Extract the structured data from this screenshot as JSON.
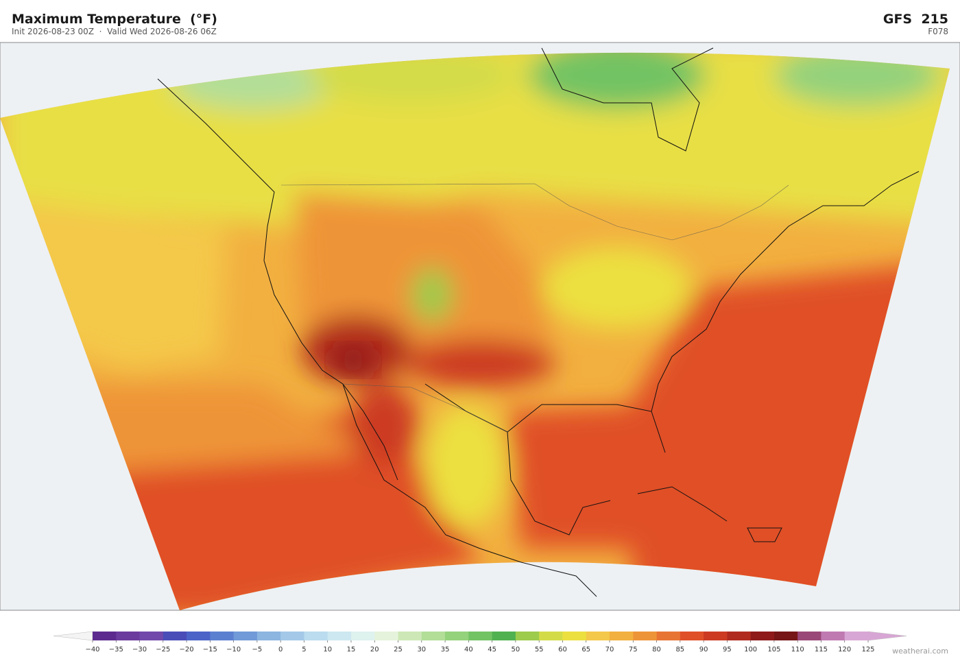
{
  "header": {
    "title": "Maximum Temperature  (°F)",
    "subtitle": "Init 2026-08-23 00Z  ·  Valid Wed 2026-08-26 06Z",
    "model": "GFS  215",
    "forecast_hour": "F078"
  },
  "colorbar": {
    "ticks": [
      {
        "value": -40,
        "label": "−40"
      },
      {
        "value": -35,
        "label": "−35"
      },
      {
        "value": -30,
        "label": "−30"
      },
      {
        "value": -25,
        "label": "−25"
      },
      {
        "value": -20,
        "label": "−20"
      },
      {
        "value": -15,
        "label": "−15"
      },
      {
        "value": -10,
        "label": "−10"
      },
      {
        "value": -5,
        "label": "−5"
      },
      0,
      5,
      10,
      15,
      20,
      25,
      30,
      35,
      40,
      45,
      50,
      55,
      60,
      65,
      70,
      75,
      80,
      85,
      90,
      95,
      100,
      105,
      110,
      115,
      120,
      125
    ],
    "colors": [
      "#5c2a8e",
      "#6b3b9e",
      "#7249aa",
      "#4a4db8",
      "#4c64c8",
      "#5c80d0",
      "#709ad8",
      "#8cb5e0",
      "#a4c9e8",
      "#badcee",
      "#cde8f0",
      "#def2ee",
      "#e6f3dc",
      "#cde8b6",
      "#b2de98",
      "#94d27c",
      "#72c364",
      "#50b150",
      "#9dcb4c",
      "#d3dc48",
      "#ece040",
      "#f4c84a",
      "#f2b040",
      "#ee9438",
      "#e87434",
      "#e05028",
      "#cc3a22",
      "#b02a1e",
      "#8e1a1a",
      "#761616",
      "#9a4878",
      "#c07ab2",
      "#d8a6d4"
    ],
    "under_color": "#f4f4f4",
    "over_color": "#d8a6d4"
  },
  "footer": {
    "credit": "weatherai.com"
  }
}
